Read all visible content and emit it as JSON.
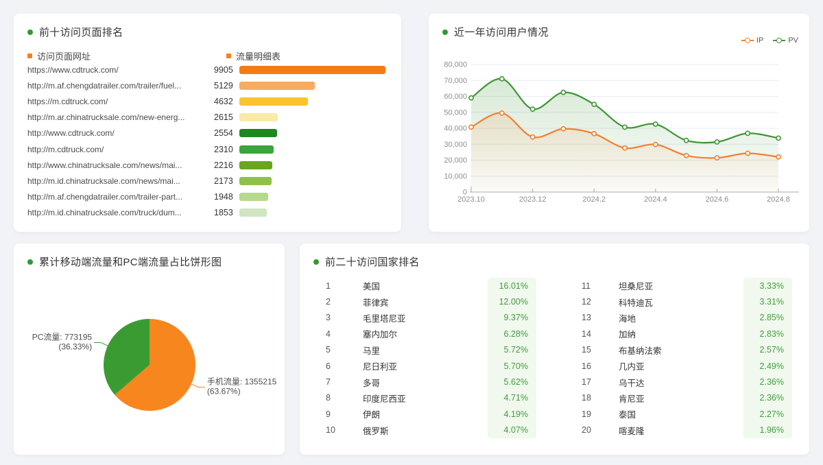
{
  "colors": {
    "accent_green": "#2F9B2F",
    "accent_orange": "#F5821F",
    "page_bg": "#F1F3F6",
    "pct_text_green": "#3E9E3E",
    "pct_band_green": "#F1F8ED",
    "axis_label": "#8D8D8D",
    "grid_line": "#E6EBF3",
    "ip_color": "#F57E2C",
    "pv_color": "#3E9434",
    "pie_mobile_color": "#F8861E",
    "pie_pc_color": "#3B9B33"
  },
  "panels": {
    "top_pages": {
      "title": "前十访问页面排名",
      "columns": {
        "url": "访问页面网址",
        "traffic": "流量明细表"
      }
    },
    "visitors": {
      "title": "近一年访问用户情况",
      "legend": [
        {
          "label": "IP",
          "color": "#F57E2C"
        },
        {
          "label": "PV",
          "color": "#3E9434"
        }
      ]
    },
    "pie": {
      "title": "累计移动端流量和PC端流量占比饼形图"
    },
    "countries": {
      "title": "前二十访问国家排名"
    }
  },
  "chart_data": [
    {
      "id": "top_pages_bar",
      "type": "bar",
      "orientation": "horizontal",
      "title": "前十访问页面排名",
      "categories": [
        "https://www.cdtruck.com/",
        "http://m.af.chengdatrailer.com/trailer/fuel...",
        "https://m.cdtruck.com/",
        "http://m.ar.chinatrucksale.com/new-energ...",
        "http://www.cdtruck.com/",
        "http://m.cdtruck.com/",
        "http://www.chinatrucksale.com/news/mai...",
        "http://m.id.chinatrucksale.com/news/mai...",
        "http://m.af.chengdatrailer.com/trailer-part...",
        "http://m.id.chinatrucksale.com/truck/dum..."
      ],
      "values": [
        9905,
        5129,
        4632,
        2615,
        2554,
        2310,
        2216,
        2173,
        1948,
        1853
      ],
      "bar_colors": [
        "#F47C15",
        "#F9AB5E",
        "#F9C42C",
        "#FBEAA6",
        "#1F871F",
        "#3BA43B",
        "#69A51E",
        "#8EC14C",
        "#B6D98D",
        "#D0E5C2"
      ],
      "xlim": [
        0,
        9905
      ]
    },
    {
      "id": "visitors_line",
      "type": "line",
      "title": "近一年访问用户情况",
      "x": [
        "2023.10",
        "2023.11",
        "2023.12",
        "2024.1",
        "2024.2",
        "2024.3",
        "2024.4",
        "2024.5",
        "2024.6",
        "2024.7",
        "2024.8"
      ],
      "x_tick_labels": [
        "2023.10",
        "2023.12",
        "2024.2",
        "2024.4",
        "2024.6",
        "2024.8"
      ],
      "series": [
        {
          "name": "PV",
          "color": "#3E9434",
          "values": [
            59000,
            71000,
            52000,
            62500,
            55000,
            40700,
            42600,
            32400,
            31400,
            36800,
            33800
          ]
        },
        {
          "name": "IP",
          "color": "#F57E2C",
          "values": [
            40700,
            49500,
            34500,
            39600,
            36600,
            27600,
            29800,
            22900,
            21400,
            24300,
            22000
          ]
        }
      ],
      "ylim": [
        0,
        80000
      ],
      "y_ticks": [
        0,
        10000,
        20000,
        30000,
        40000,
        50000,
        60000,
        70000,
        80000
      ],
      "grid": true,
      "legend_position": "top-right"
    },
    {
      "id": "traffic_pie",
      "type": "pie",
      "title": "累计移动端流量和PC端流量占比饼形图",
      "slices": [
        {
          "label": "手机流量",
          "value": 1355215,
          "pct": 63.67,
          "pct_display": "(63.67%)",
          "color": "#F8861E"
        },
        {
          "label": "PC流量",
          "value": 773195,
          "pct": 36.33,
          "pct_display": "(36.33%)",
          "color": "#3B9B33"
        }
      ]
    },
    {
      "id": "countries_table",
      "type": "table",
      "title": "前二十访问国家排名",
      "columns": [
        "rank",
        "country",
        "share"
      ],
      "rows": [
        {
          "rank": 1,
          "country": "美国",
          "share": "16.01%"
        },
        {
          "rank": 2,
          "country": "菲律宾",
          "share": "12.00%"
        },
        {
          "rank": 3,
          "country": "毛里塔尼亚",
          "share": "9.37%"
        },
        {
          "rank": 4,
          "country": "塞内加尔",
          "share": "6.28%"
        },
        {
          "rank": 5,
          "country": "马里",
          "share": "5.72%"
        },
        {
          "rank": 6,
          "country": "尼日利亚",
          "share": "5.70%"
        },
        {
          "rank": 7,
          "country": "多哥",
          "share": "5.62%"
        },
        {
          "rank": 8,
          "country": "印度尼西亚",
          "share": "4.71%"
        },
        {
          "rank": 9,
          "country": "伊朗",
          "share": "4.19%"
        },
        {
          "rank": 10,
          "country": "俄罗斯",
          "share": "4.07%"
        },
        {
          "rank": 11,
          "country": "坦桑尼亚",
          "share": "3.33%"
        },
        {
          "rank": 12,
          "country": "科特迪瓦",
          "share": "3.31%"
        },
        {
          "rank": 13,
          "country": "海地",
          "share": "2.85%"
        },
        {
          "rank": 14,
          "country": "加纳",
          "share": "2.83%"
        },
        {
          "rank": 15,
          "country": "布基纳法索",
          "share": "2.57%"
        },
        {
          "rank": 16,
          "country": "几内亚",
          "share": "2.49%"
        },
        {
          "rank": 17,
          "country": "乌干达",
          "share": "2.36%"
        },
        {
          "rank": 18,
          "country": "肯尼亚",
          "share": "2.36%"
        },
        {
          "rank": 19,
          "country": "泰国",
          "share": "2.27%"
        },
        {
          "rank": 20,
          "country": "喀麦隆",
          "share": "1.96%"
        }
      ]
    }
  ]
}
